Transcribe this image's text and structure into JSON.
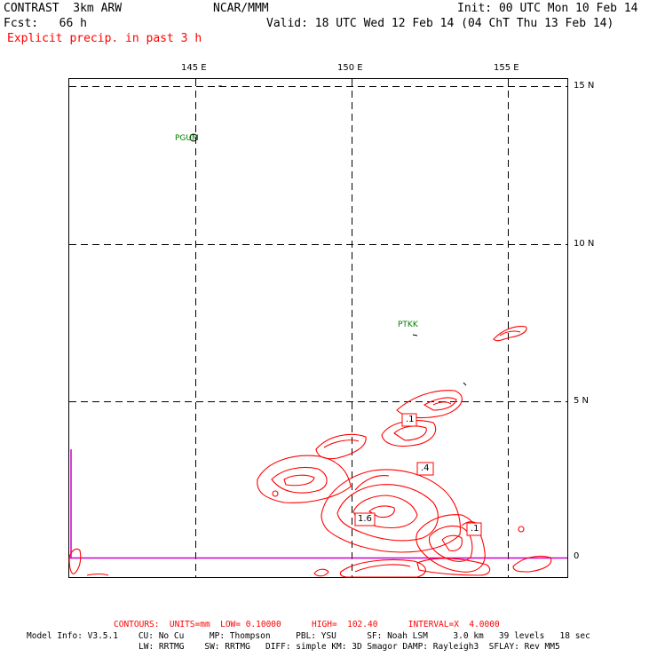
{
  "header": {
    "model": "CONTRAST  3km ARW",
    "org": "NCAR/MMM",
    "init": "Init: 00 UTC Mon 10 Feb 14",
    "fcst": "Fcst:   66 h",
    "valid": "Valid: 18 UTC Wed 12 Feb 14 (04 ChT Thu 13 Feb 14)",
    "field": "Explicit precip. in past 3 h"
  },
  "map": {
    "lon_labels": [
      "145 E",
      "150 E",
      "155 E"
    ],
    "lat_labels": [
      "15 N",
      "10 N",
      "5 N",
      "0"
    ],
    "stations": [
      "PGUM",
      "PTKK"
    ],
    "contour_labels": [
      ".1",
      ".4",
      "1.6",
      ".1"
    ]
  },
  "footer": {
    "contours": "CONTOURS:  UNITS=mm  LOW= 0.10000      HIGH=  102.40      INTERVAL=X  4.0000",
    "model_info_1": "Model Info: V3.5.1    CU: No Cu     MP: Thompson     PBL: YSU      SF: Noah LSM     3.0 km   39 levels   18 sec",
    "model_info_2": "LW: RRTMG    SW: RRTMG   DIFF: simple KM: 3D Smagor DAMP: Rayleigh3  SFLAY: Rev MM5"
  },
  "colors": {
    "precip": "#ff0000",
    "station": "#008000",
    "equator_line": "#cc00cc"
  }
}
